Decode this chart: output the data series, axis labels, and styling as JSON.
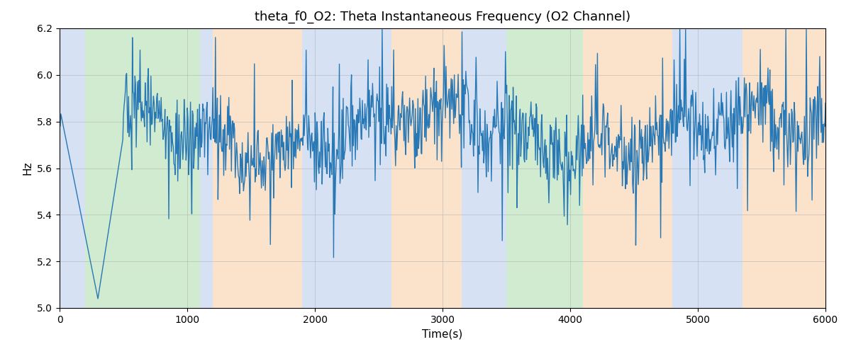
{
  "title": "theta_f0_O2: Theta Instantaneous Frequency (O2 Channel)",
  "xlabel": "Time(s)",
  "ylabel": "Hz",
  "xlim": [
    0,
    6000
  ],
  "ylim": [
    5.0,
    6.2
  ],
  "line_color": "#2878b5",
  "line_width": 1.0,
  "background_color": "#ffffff",
  "grid": true,
  "figsize": [
    12,
    5
  ],
  "dpi": 100,
  "bg_regions": [
    {
      "xmin": 0,
      "xmax": 200,
      "color": "#aec6e8",
      "alpha": 0.5
    },
    {
      "xmin": 200,
      "xmax": 1100,
      "color": "#98d498",
      "alpha": 0.45
    },
    {
      "xmin": 1100,
      "xmax": 1200,
      "color": "#aec6e8",
      "alpha": 0.5
    },
    {
      "xmin": 1200,
      "xmax": 1900,
      "color": "#f7c897",
      "alpha": 0.5
    },
    {
      "xmin": 1900,
      "xmax": 2600,
      "color": "#aec6e8",
      "alpha": 0.5
    },
    {
      "xmin": 2600,
      "xmax": 3150,
      "color": "#f7c897",
      "alpha": 0.5
    },
    {
      "xmin": 3150,
      "xmax": 3500,
      "color": "#aec6e8",
      "alpha": 0.5
    },
    {
      "xmin": 3500,
      "xmax": 4100,
      "color": "#98d498",
      "alpha": 0.45
    },
    {
      "xmin": 4100,
      "xmax": 4800,
      "color": "#f7c897",
      "alpha": 0.5
    },
    {
      "xmin": 4800,
      "xmax": 5350,
      "color": "#aec6e8",
      "alpha": 0.5
    },
    {
      "xmin": 5350,
      "xmax": 6000,
      "color": "#f7c897",
      "alpha": 0.5
    }
  ],
  "seed": 17,
  "n_points": 1200
}
